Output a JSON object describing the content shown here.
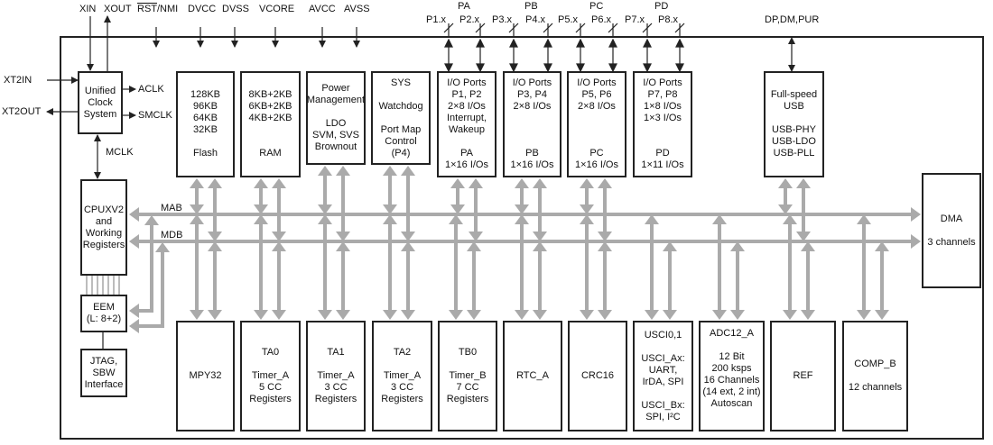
{
  "pins_top": {
    "xin": "XIN",
    "xout": "XOUT",
    "rst_prefix": "RST",
    "rst_suffix": "/NMI",
    "dvcc": "DVCC",
    "dvss": "DVSS",
    "vcore": "VCORE",
    "avcc": "AVCC",
    "avss": "AVSS",
    "pa": "PA",
    "pb": "PB",
    "pc": "PC",
    "pd": "PD",
    "p1": "P1.x",
    "p2": "P2.x",
    "p3": "P3.x",
    "p4": "P4.x",
    "p5": "P5.x",
    "p6": "P6.x",
    "p7": "P7.x",
    "p8": "P8.x",
    "usb_pins": "DP,DM,PUR"
  },
  "pins_left": {
    "xt2in": "XT2IN",
    "xt2out": "XT2OUT"
  },
  "clock_signals": {
    "aclk": "ACLK",
    "smclk": "SMCLK",
    "mclk": "MCLK"
  },
  "buses": {
    "mab": "MAB",
    "mdb": "MDB"
  },
  "blocks": {
    "clock": "Unified\nClock\nSystem",
    "flash": "128KB\n96KB\n64KB\n32KB\n\nFlash",
    "ram": "8KB+2KB\n6KB+2KB\n4KB+2KB\n\n\nRAM",
    "power": "Power\nManagement\n\nLDO\nSVM, SVS\nBrownout",
    "sys": "SYS\n\nWatchdog\n\nPort Map\nControl\n(P4)",
    "pa": "I/O Ports\nP1, P2\n2×8 I/Os\nInterrupt,\nWakeup\n\nPA\n1×16 I/Os",
    "pb": "I/O Ports\nP3, P4\n2×8 I/Os\n\n\n\nPB\n1×16 I/Os",
    "pc": "I/O Ports\nP5, P6\n2×8 I/Os\n\n\n\nPC\n1×16 I/Os",
    "pd": "I/O Ports\nP7, P8\n1×8 I/Os\n1×3 I/Os\n\n\nPD\n1×11 I/Os",
    "usb": "Full-speed\nUSB\n\nUSB-PHY\nUSB-LDO\nUSB-PLL",
    "cpu": "CPUXV2\nand\nWorking\nRegisters",
    "eem": "EEM\n(L: 8+2)",
    "jtag": "JTAG,\nSBW\nInterface",
    "dma": "DMA\n\n3 channels",
    "mpy": "MPY32",
    "ta0": "TA0\n\nTimer_A\n5 CC\nRegisters",
    "ta1": "TA1\n\nTimer_A\n3 CC\nRegisters",
    "ta2": "TA2\n\nTimer_A\n3 CC\nRegisters",
    "tb0": "TB0\n\nTimer_B\n7 CC\nRegisters",
    "rtc": "RTC_A",
    "crc": "CRC16",
    "usci": "USCI0,1\n\nUSCI_Ax:\nUART,\nIrDA, SPI\n\nUSCI_Bx:\nSPI, I²C",
    "adc": "ADC12_A\n\n12 Bit\n200 ksps\n16 Channels\n(14 ext, 2 int)\nAutoscan",
    "ref": "REF",
    "comp": "COMP_B\n\n12 channels"
  },
  "colors": {
    "bus": "#aaaaaa",
    "line": "#222222"
  }
}
